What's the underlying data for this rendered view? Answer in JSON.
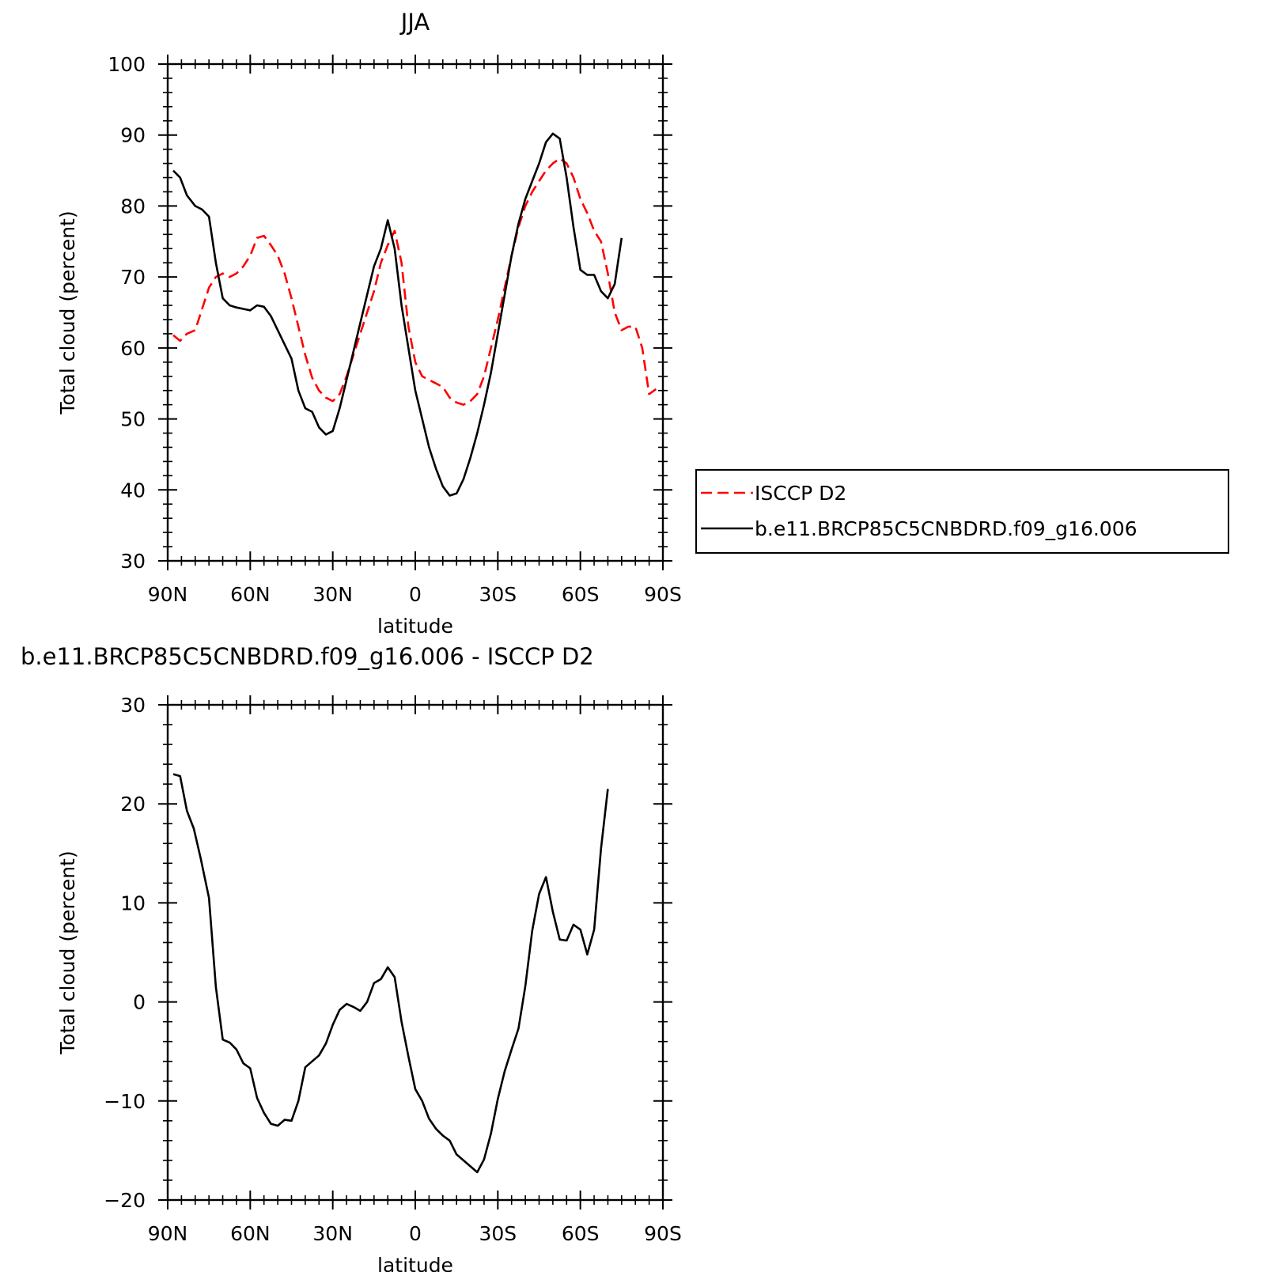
{
  "chart_data": [
    {
      "type": "line",
      "title": "JJA",
      "xlabel": "latitude",
      "ylabel": "Total cloud (percent)",
      "xlim": [
        90,
        -90
      ],
      "ylim": [
        30,
        100
      ],
      "yticks": [
        30,
        40,
        50,
        60,
        70,
        80,
        90,
        100
      ],
      "xticks": [
        {
          "value": 90,
          "label": "90N"
        },
        {
          "value": 60,
          "label": "60N"
        },
        {
          "value": 30,
          "label": "30N"
        },
        {
          "value": 0,
          "label": "0"
        },
        {
          "value": -30,
          "label": "30S"
        },
        {
          "value": -60,
          "label": "60S"
        },
        {
          "value": -90,
          "label": "90S"
        }
      ],
      "legend_position": "right",
      "series": [
        {
          "name": "ISCCP D2",
          "color": "#ff0000",
          "dash": "dashed",
          "points": [
            [
              88,
              61.8
            ],
            [
              85.5,
              61
            ],
            [
              83,
              62
            ],
            [
              80,
              62.5
            ],
            [
              77.5,
              65.5
            ],
            [
              75,
              68.5
            ],
            [
              72.5,
              70
            ],
            [
              70,
              70.5
            ],
            [
              67.5,
              70
            ],
            [
              65,
              70.5
            ],
            [
              62.5,
              71.5
            ],
            [
              60,
              73
            ],
            [
              57.5,
              75.5
            ],
            [
              55,
              75.8
            ],
            [
              52.5,
              74.5
            ],
            [
              50,
              73
            ],
            [
              47.5,
              70.5
            ],
            [
              45,
              67
            ],
            [
              42.5,
              63
            ],
            [
              40,
              59
            ],
            [
              37.5,
              55.8
            ],
            [
              35,
              54
            ],
            [
              32.5,
              53
            ],
            [
              30,
              52.5
            ],
            [
              27.5,
              53.5
            ],
            [
              25,
              56
            ],
            [
              22.5,
              59
            ],
            [
              20,
              62
            ],
            [
              17.5,
              65
            ],
            [
              15,
              68
            ],
            [
              12.5,
              72
            ],
            [
              10,
              74.5
            ],
            [
              7.5,
              76.5
            ],
            [
              5,
              72
            ],
            [
              2.5,
              63
            ],
            [
              0,
              58
            ],
            [
              -2.5,
              56
            ],
            [
              -5,
              55.5
            ],
            [
              -7.5,
              55
            ],
            [
              -10,
              54.5
            ],
            [
              -12.5,
              53
            ],
            [
              -15,
              52.3
            ],
            [
              -17.5,
              52
            ],
            [
              -20,
              52.5
            ],
            [
              -22.5,
              53.5
            ],
            [
              -25,
              56
            ],
            [
              -27.5,
              60
            ],
            [
              -30,
              64
            ],
            [
              -32.5,
              68.5
            ],
            [
              -35,
              73
            ],
            [
              -37.5,
              77
            ],
            [
              -40,
              80
            ],
            [
              -42.5,
              82
            ],
            [
              -45,
              83.5
            ],
            [
              -47.5,
              85
            ],
            [
              -50,
              86
            ],
            [
              -52.5,
              86.7
            ],
            [
              -55,
              86
            ],
            [
              -57.5,
              84
            ],
            [
              -60,
              81
            ],
            [
              -62.5,
              79
            ],
            [
              -65,
              76.5
            ],
            [
              -67.5,
              75
            ],
            [
              -70,
              70.5
            ],
            [
              -72.5,
              65
            ],
            [
              -75,
              62.5
            ],
            [
              -77.5,
              63
            ],
            [
              -80,
              63
            ],
            [
              -82.5,
              60
            ],
            [
              -85,
              53.5
            ],
            [
              -87.5,
              54.2
            ]
          ]
        },
        {
          "name": "b.e11.BRCP85C5CNBDRD.f09_g16.006",
          "color": "#000000",
          "dash": "solid",
          "points": [
            [
              88,
              85
            ],
            [
              85.5,
              84
            ],
            [
              83,
              81.5
            ],
            [
              80,
              80
            ],
            [
              77.5,
              79.5
            ],
            [
              75,
              78.5
            ],
            [
              72.5,
              72
            ],
            [
              70,
              67
            ],
            [
              67.5,
              66
            ],
            [
              65,
              65.7
            ],
            [
              62.5,
              65.5
            ],
            [
              60,
              65.3
            ],
            [
              57.5,
              66
            ],
            [
              55,
              65.8
            ],
            [
              52.5,
              64.5
            ],
            [
              50,
              62.5
            ],
            [
              47.5,
              60.5
            ],
            [
              45,
              58.5
            ],
            [
              42.5,
              54
            ],
            [
              40,
              51.5
            ],
            [
              37.5,
              51
            ],
            [
              35,
              48.8
            ],
            [
              32.5,
              47.8
            ],
            [
              30,
              48.3
            ],
            [
              27.5,
              51.5
            ],
            [
              25,
              55.5
            ],
            [
              22.5,
              59.5
            ],
            [
              20,
              63.5
            ],
            [
              17.5,
              67.5
            ],
            [
              15,
              71.5
            ],
            [
              12.5,
              74
            ],
            [
              10,
              78
            ],
            [
              7.5,
              74
            ],
            [
              5,
              66
            ],
            [
              2.5,
              60
            ],
            [
              0,
              54
            ],
            [
              -2.5,
              50
            ],
            [
              -5,
              46
            ],
            [
              -7.5,
              43
            ],
            [
              -10,
              40.5
            ],
            [
              -12.5,
              39.2
            ],
            [
              -15,
              39.5
            ],
            [
              -17.5,
              41.5
            ],
            [
              -20,
              44.5
            ],
            [
              -22.5,
              48
            ],
            [
              -25,
              52
            ],
            [
              -27.5,
              56.5
            ],
            [
              -30,
              62
            ],
            [
              -32.5,
              67.5
            ],
            [
              -35,
              73
            ],
            [
              -37.5,
              77.5
            ],
            [
              -40,
              81
            ],
            [
              -42.5,
              83.5
            ],
            [
              -45,
              86
            ],
            [
              -47.5,
              89
            ],
            [
              -50,
              90.2
            ],
            [
              -52.5,
              89.5
            ],
            [
              -55,
              84
            ],
            [
              -57.5,
              77
            ],
            [
              -60,
              71
            ],
            [
              -62.5,
              70.3
            ],
            [
              -65,
              70.3
            ],
            [
              -67.5,
              68
            ],
            [
              -70,
              67
            ],
            [
              -72.5,
              69
            ],
            [
              -75,
              75.5
            ]
          ]
        }
      ]
    },
    {
      "type": "line",
      "title": "b.e11.BRCP85C5CNBDRD.f09_g16.006 - ISCCP D2",
      "xlabel": "latitude",
      "ylabel": "Total cloud (percent)",
      "xlim": [
        90,
        -90
      ],
      "ylim": [
        -20,
        30
      ],
      "yticks": [
        -20,
        -10,
        0,
        10,
        20,
        30
      ],
      "xticks": [
        {
          "value": 90,
          "label": "90N"
        },
        {
          "value": 60,
          "label": "60N"
        },
        {
          "value": 30,
          "label": "30N"
        },
        {
          "value": 0,
          "label": "0"
        },
        {
          "value": -30,
          "label": "30S"
        },
        {
          "value": -60,
          "label": "60S"
        },
        {
          "value": -90,
          "label": "90S"
        }
      ],
      "series": [
        {
          "color": "#000000",
          "dash": "solid",
          "points": [
            [
              88,
              23
            ],
            [
              85.5,
              22.8
            ],
            [
              83,
              19.3
            ],
            [
              80.5,
              17.5
            ],
            [
              78,
              14.5
            ],
            [
              75,
              10.5
            ],
            [
              72.5,
              1.5
            ],
            [
              70,
              -3.8
            ],
            [
              67.5,
              -4.1
            ],
            [
              65,
              -4.8
            ],
            [
              62.5,
              -6.2
            ],
            [
              60,
              -6.7
            ],
            [
              57.5,
              -9.7
            ],
            [
              55,
              -11.2
            ],
            [
              52.5,
              -12.3
            ],
            [
              50,
              -12.5
            ],
            [
              47.5,
              -11.9
            ],
            [
              45,
              -12
            ],
            [
              42.5,
              -10
            ],
            [
              40,
              -6.6
            ],
            [
              37.5,
              -6
            ],
            [
              35,
              -5.4
            ],
            [
              32.5,
              -4.2
            ],
            [
              30,
              -2.3
            ],
            [
              27.5,
              -0.8
            ],
            [
              25,
              -0.2
            ],
            [
              22.5,
              -0.5
            ],
            [
              20,
              -0.9
            ],
            [
              17.5,
              0
            ],
            [
              15,
              1.9
            ],
            [
              12.5,
              2.3
            ],
            [
              10,
              3.5
            ],
            [
              7.5,
              2.5
            ],
            [
              5,
              -2
            ],
            [
              2.5,
              -5.5
            ],
            [
              0,
              -8.8
            ],
            [
              -2.5,
              -10
            ],
            [
              -5,
              -11.8
            ],
            [
              -7.5,
              -12.8
            ],
            [
              -10,
              -13.5
            ],
            [
              -12.5,
              -14
            ],
            [
              -15,
              -15.4
            ],
            [
              -17.5,
              -16
            ],
            [
              -20,
              -16.6
            ],
            [
              -22.5,
              -17.2
            ],
            [
              -25,
              -15.9
            ],
            [
              -27.5,
              -13.3
            ],
            [
              -30,
              -9.8
            ],
            [
              -32.5,
              -7
            ],
            [
              -35,
              -4.8
            ],
            [
              -37.5,
              -2.7
            ],
            [
              -40,
              1.6
            ],
            [
              -42.5,
              7.2
            ],
            [
              -45,
              10.9
            ],
            [
              -47.5,
              12.6
            ],
            [
              -50,
              9.1
            ],
            [
              -52.5,
              6.3
            ],
            [
              -55,
              6.2
            ],
            [
              -57.5,
              7.8
            ],
            [
              -60,
              7.3
            ],
            [
              -62.5,
              4.8
            ],
            [
              -65,
              7.3
            ],
            [
              -67.5,
              15.5
            ],
            [
              -70,
              21.5
            ]
          ]
        }
      ]
    }
  ]
}
